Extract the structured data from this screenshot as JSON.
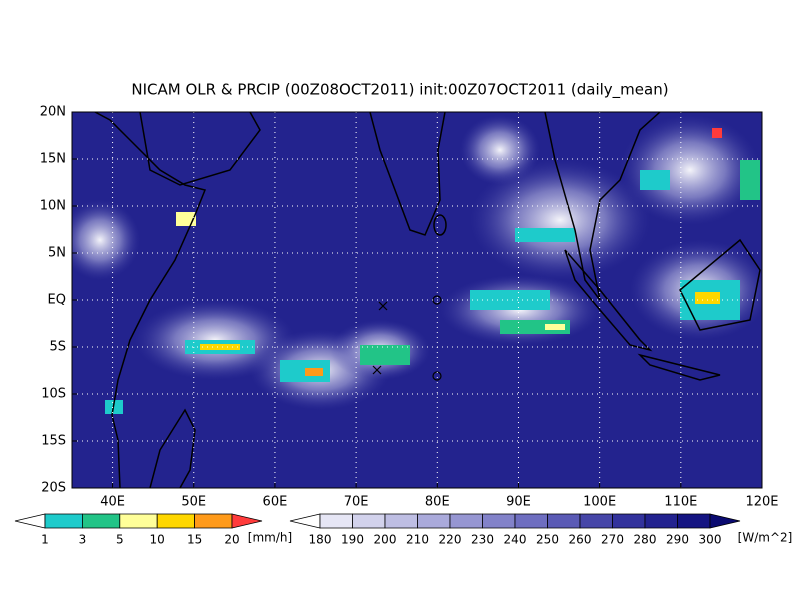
{
  "title": "NICAM OLR & PRCIP (00Z08OCT2011) init:00Z07OCT2011 (daily_mean)",
  "map": {
    "lon_labels": [
      "40E",
      "50E",
      "60E",
      "70E",
      "80E",
      "90E",
      "100E",
      "110E",
      "120E"
    ],
    "lat_labels": [
      "20N",
      "15N",
      "10N",
      "5N",
      "EQ",
      "5S",
      "10S",
      "15S",
      "20S"
    ]
  },
  "precip_colorbar": {
    "labels": [
      "1",
      "3",
      "5",
      "10",
      "15",
      "20"
    ],
    "unit": "[mm/h]",
    "colors": [
      "#ffffff",
      "#1ecbcb",
      "#22c487",
      "#ffff99",
      "#ffd700",
      "#ff9a1a",
      "#ff3b3b"
    ]
  },
  "olr_colorbar": {
    "labels": [
      "180",
      "190",
      "200",
      "210",
      "220",
      "230",
      "240",
      "250",
      "260",
      "270",
      "280",
      "290",
      "300"
    ],
    "unit": "[W/m^2]",
    "colors": [
      "#ffffff",
      "#e6e6f5",
      "#d2d2ec",
      "#bebee3",
      "#aaaadb",
      "#9696d2",
      "#8282c9",
      "#6e6ec0",
      "#5a5ab5",
      "#4646a8",
      "#32329c",
      "#22228f",
      "#141482",
      "#0a0a70"
    ]
  }
}
